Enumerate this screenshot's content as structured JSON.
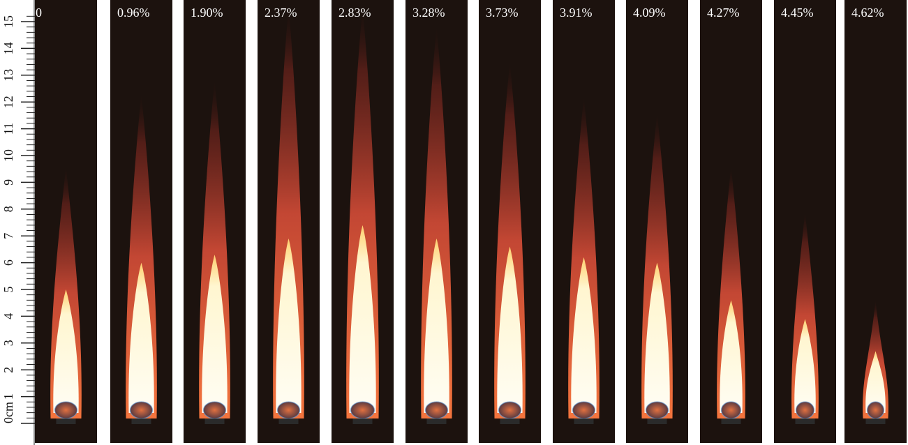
{
  "ruler": {
    "labels": [
      "0cm",
      "1",
      "2",
      "3",
      "4",
      "5",
      "6",
      "7",
      "8",
      "9",
      "10",
      "11",
      "12",
      "13",
      "14",
      "15"
    ]
  },
  "panels": [
    {
      "label": "0"
    },
    {
      "label": "0.96%"
    },
    {
      "label": "1.90%"
    },
    {
      "label": "2.37%"
    },
    {
      "label": "2.83%"
    },
    {
      "label": "3.28%"
    },
    {
      "label": "3.73%"
    },
    {
      "label": "3.91%"
    },
    {
      "label": "4.09%"
    },
    {
      "label": "4.27%"
    },
    {
      "label": "4.45%"
    },
    {
      "label": "4.62%"
    }
  ]
}
